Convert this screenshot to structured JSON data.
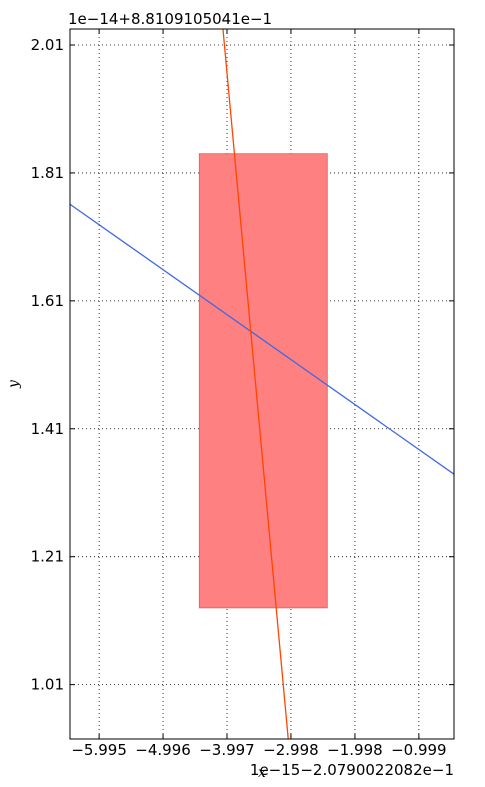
{
  "chart_data": {
    "type": "line",
    "title": "",
    "xlabel": "x",
    "ylabel": "y",
    "x_offset_text": "1e−15−2.0790022082e−1",
    "y_offset_text": "1e−14+8.8109105041e−1",
    "xlim": [
      -6.45,
      -0.45
    ],
    "ylim": [
      0.925,
      2.035
    ],
    "x_ticks": [
      -5.995,
      -4.996,
      -3.997,
      -2.998,
      -1.998,
      -0.999
    ],
    "x_tick_labels": [
      "−5.995",
      "−4.996",
      "−3.997",
      "−2.998",
      "−1.998",
      "−0.999"
    ],
    "y_ticks": [
      1.01,
      1.21,
      1.41,
      1.61,
      1.81,
      2.01
    ],
    "y_tick_labels": [
      "1.01",
      "1.21",
      "1.41",
      "1.61",
      "1.81",
      "2.01"
    ],
    "grid": true,
    "series": [
      {
        "color": "#4169e1",
        "x": [
          -6.45,
          -0.45
        ],
        "y": [
          1.761,
          1.339
        ]
      },
      {
        "color": "#ff4500",
        "x": [
          -4.06,
          -3.04
        ],
        "y": [
          2.035,
          0.925
        ]
      }
    ],
    "rectangle": {
      "x_range": [
        -4.43,
        -2.43
      ],
      "y_range": [
        1.13,
        1.84
      ],
      "color": "#ff8080"
    }
  }
}
